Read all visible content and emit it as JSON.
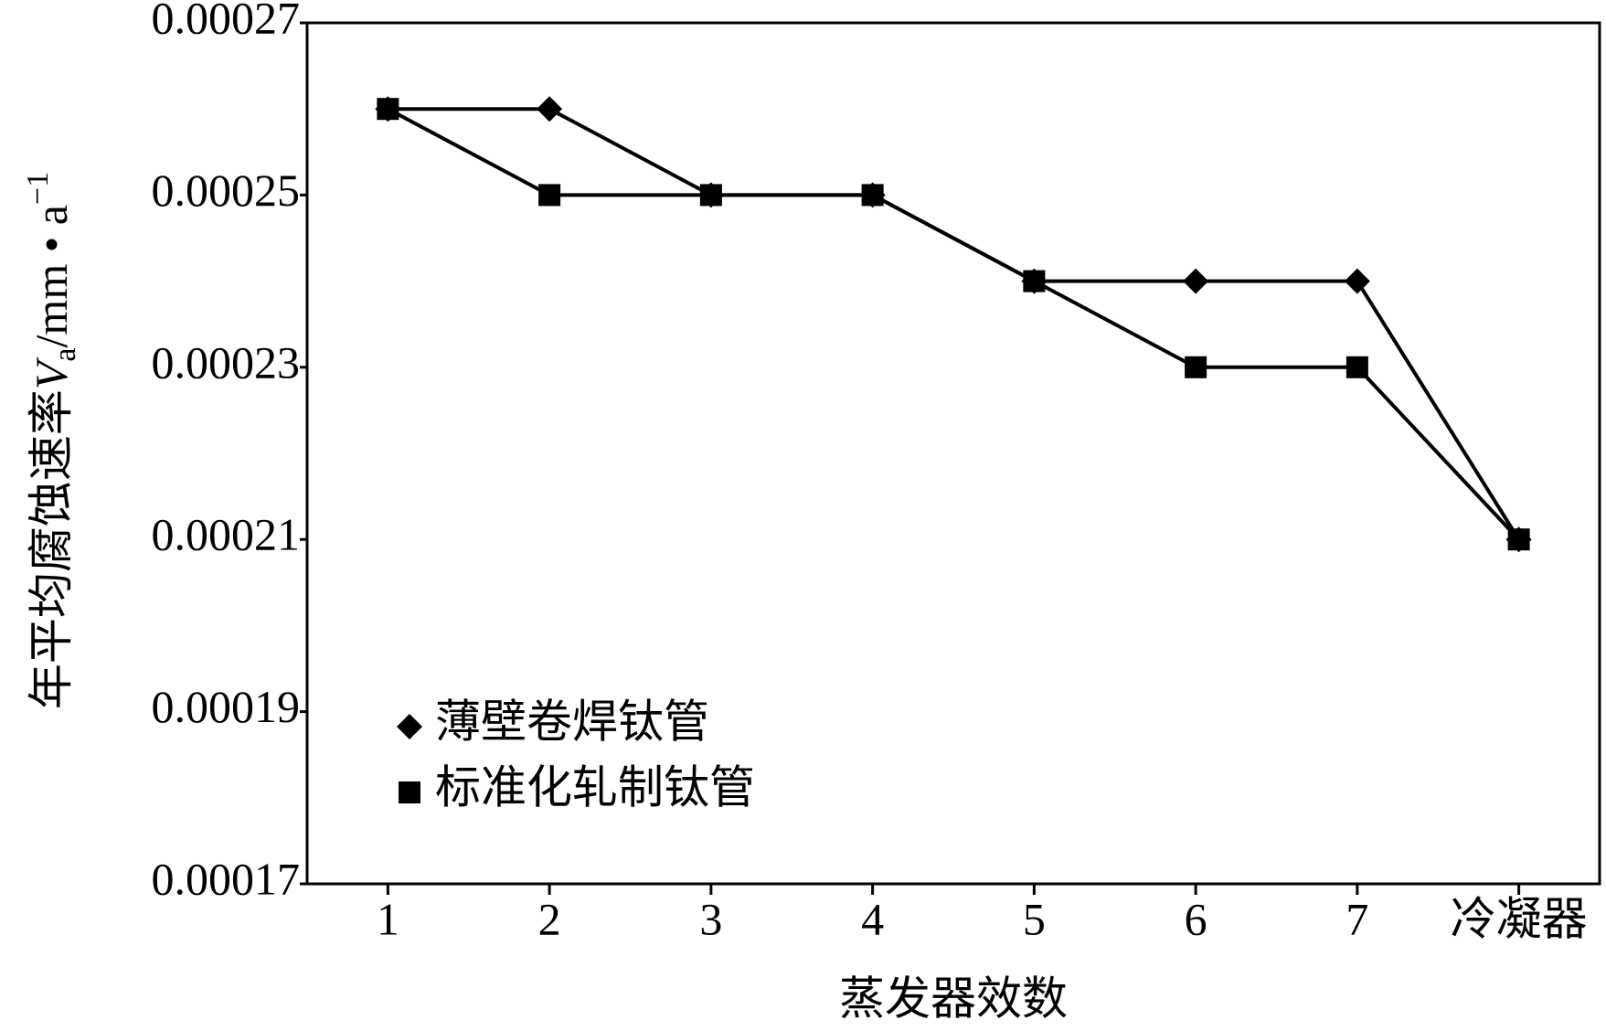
{
  "chart_data": {
    "type": "line",
    "y_label": [
      "年平均腐蚀速率",
      "V",
      "a",
      "/mm • a",
      "−1"
    ],
    "x_label": "蒸发器效数",
    "categories": [
      "1",
      "2",
      "3",
      "4",
      "5",
      "6",
      "7",
      "冷凝器"
    ],
    "series": [
      {
        "name": "薄壁卷焊钛管",
        "color": "#000000",
        "marker": "diamond",
        "values": [
          0.00026,
          0.00026,
          0.00025,
          0.00025,
          0.00024,
          0.00024,
          0.00024,
          0.00021
        ]
      },
      {
        "name": "标准化轧制钛管",
        "color": "#000000",
        "marker": "square",
        "values": [
          0.00026,
          0.00025,
          0.00025,
          0.00025,
          0.00024,
          0.00023,
          0.00023,
          0.00021
        ]
      }
    ],
    "ylim": [
      0.00017,
      0.00027
    ],
    "yticks": [
      0.00017,
      0.00019,
      0.00021,
      0.00023,
      0.00025,
      0.00027
    ],
    "grid": false,
    "legend": "lower-left"
  }
}
